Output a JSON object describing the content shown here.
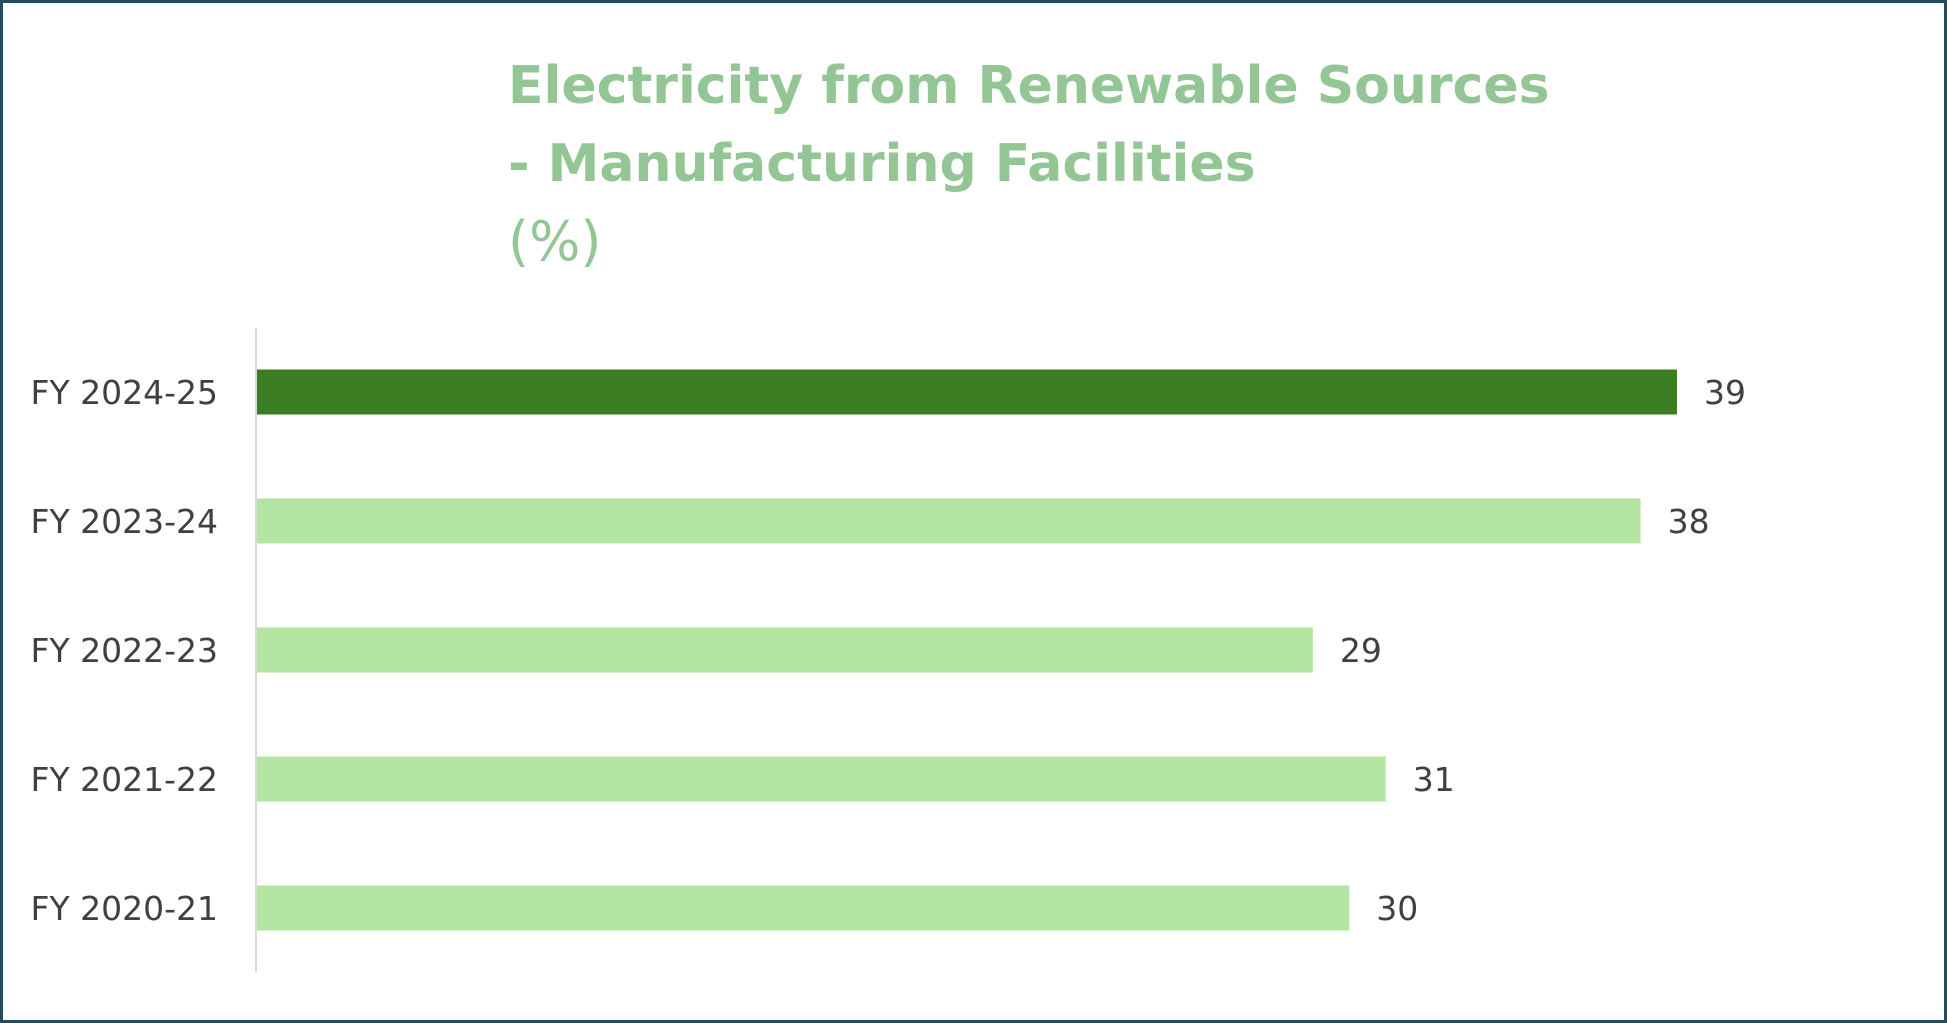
{
  "chart_data": {
    "type": "bar",
    "orientation": "horizontal",
    "title_lines": [
      "Electricity from Renewable Sources",
      "- Manufacturing Facilities"
    ],
    "title_unit": "(%)",
    "categories": [
      "FY 2024-25",
      "FY 2023-24",
      "FY 2022-23",
      "FY 2021-22",
      "FY 2020-21"
    ],
    "values": [
      39,
      38,
      29,
      31,
      30
    ],
    "data_labels": [
      "39",
      "38",
      "29",
      "31",
      "30"
    ],
    "xlim": [
      0,
      39
    ],
    "grid": false,
    "colors": {
      "highlight": "#3b7d23",
      "default": "#b5e5a2",
      "title": "#93c595",
      "axis": "#d9d9d9",
      "border": "#1f4e5f"
    }
  }
}
